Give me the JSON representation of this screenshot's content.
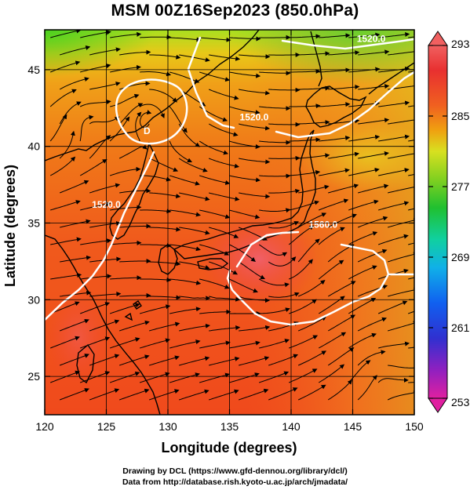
{
  "title": "MSM 00Z16Sep2023 (850.0hPa)",
  "map": {
    "xlabel": "Longitude (degrees)",
    "ylabel": "Latitude (degrees)",
    "lon_range": [
      120,
      150
    ],
    "lat_range": [
      22.5,
      47.6
    ],
    "lon_ticks": [
      "120",
      "125",
      "130",
      "135",
      "140",
      "145",
      "150"
    ],
    "lat_ticks": [
      "25",
      "30",
      "35",
      "40",
      "45"
    ],
    "grid_lons": [
      125,
      130,
      135,
      140,
      145
    ],
    "grid_lats": [
      25,
      30,
      35,
      40,
      45
    ],
    "field": "temperature (K), shaded",
    "streamlines": "wind streamlines with arrowheads",
    "contour_labels": [
      {
        "text": "1520.0",
        "lon": 137.0,
        "lat": 41.7
      },
      {
        "text": "1560.0",
        "lon": 142.6,
        "lat": 34.7
      },
      {
        "text": "1520.0",
        "lon": 125.0,
        "lat": 36.0
      },
      {
        "text": "1520.0",
        "lon": 146.5,
        "lat": 46.8
      },
      {
        "text": "D",
        "lon": 128.3,
        "lat": 40.8
      }
    ]
  },
  "colorbar": {
    "min": 253,
    "max": 293,
    "ticks": [
      "293",
      "285",
      "277",
      "269",
      "261",
      "253"
    ],
    "colors": [
      "#e020a0",
      "#a020c0",
      "#4040e0",
      "#1060f0",
      "#10a0f0",
      "#10d0d0",
      "#10d080",
      "#20c020",
      "#80d020",
      "#d0e020",
      "#f0b010",
      "#f08010",
      "#f05020",
      "#e03030",
      "#f06060"
    ]
  },
  "credits": {
    "line1": "Drawing by DCL (https://www.gfd-dennou.org/library/dcl/)",
    "line2": "Data from http://database.rish.kyoto-u.ac.jp/arch/jmadata/"
  },
  "colors": {
    "coast": "#000000",
    "contour": "#ffffff",
    "streamline": "#000000"
  }
}
